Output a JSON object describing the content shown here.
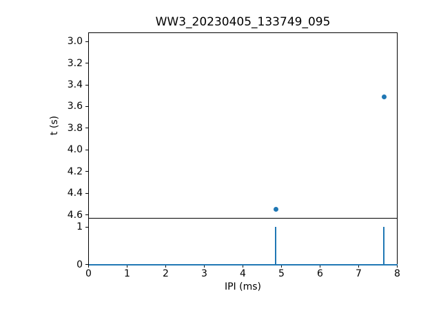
{
  "figure": {
    "background": "#ffffff",
    "accent_color": "#1f77b4",
    "axis_color": "#000000"
  },
  "chart_data": [
    {
      "type": "scatter",
      "title": "WW3_20230405_133749_095",
      "ylabel": "t (s)",
      "xlim": [
        0,
        8
      ],
      "ylim": [
        2.92,
        4.63
      ],
      "y_axis_inverted": true,
      "yticks": [
        "3.0",
        "3.2",
        "3.4",
        "3.6",
        "3.8",
        "4.0",
        "4.2",
        "4.4",
        "4.6"
      ],
      "points": [
        {
          "x": 4.85,
          "y": 4.55
        },
        {
          "x": 7.66,
          "y": 3.51
        }
      ],
      "marker_color": "#1f77b4",
      "grid": false,
      "legend": null
    },
    {
      "type": "stem",
      "xlabel": "IPI (ms)",
      "xlim": [
        0,
        8
      ],
      "ylim": [
        0,
        1.22
      ],
      "xticks": [
        "0",
        "1",
        "2",
        "3",
        "4",
        "5",
        "6",
        "7",
        "8"
      ],
      "yticks": [
        "0",
        "1"
      ],
      "spikes": [
        {
          "x": 4.85,
          "y": 1
        },
        {
          "x": 7.66,
          "y": 1
        }
      ],
      "baseline": 0,
      "line_color": "#1f77b4",
      "grid": false,
      "legend": null
    }
  ]
}
